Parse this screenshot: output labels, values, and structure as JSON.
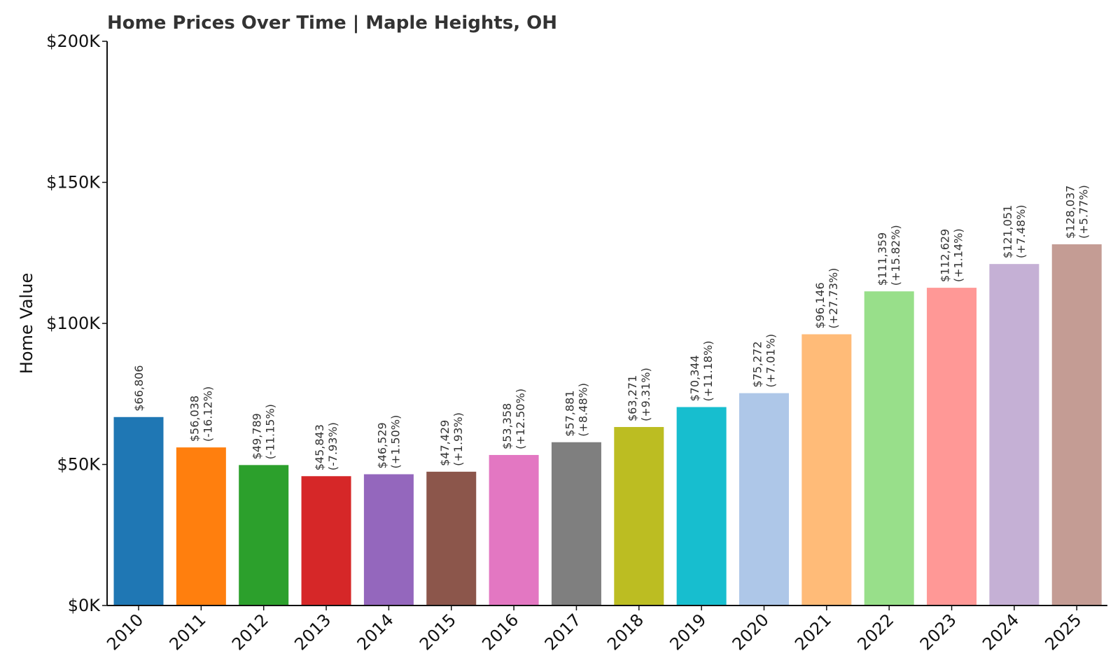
{
  "chart_data": {
    "type": "bar",
    "title": "Home Prices Over Time | Maple Heights, OH",
    "xlabel": "",
    "ylabel": "Home Value",
    "ylim": [
      0,
      200000
    ],
    "y_ticks": [
      {
        "value": 0,
        "label": "$0K"
      },
      {
        "value": 50000,
        "label": "$50K"
      },
      {
        "value": 100000,
        "label": "$100K"
      },
      {
        "value": 150000,
        "label": "$150K"
      },
      {
        "value": 200000,
        "label": "$200K"
      }
    ],
    "grid": false,
    "categories": [
      "2010",
      "2011",
      "2012",
      "2013",
      "2014",
      "2015",
      "2016",
      "2017",
      "2018",
      "2019",
      "2020",
      "2021",
      "2022",
      "2023",
      "2024",
      "2025"
    ],
    "values": [
      66806,
      56038,
      49789,
      45843,
      46529,
      47429,
      53358,
      57881,
      63271,
      70344,
      75272,
      96146,
      111359,
      112629,
      121051,
      128037
    ],
    "value_labels": [
      "$66,806",
      "$56,038",
      "$49,789",
      "$45,843",
      "$46,529",
      "$47,429",
      "$53,358",
      "$57,881",
      "$63,271",
      "$70,344",
      "$75,272",
      "$96,146",
      "$111,359",
      "$112,629",
      "$121,051",
      "$128,037"
    ],
    "change_labels": [
      "",
      "(-16.12%)",
      "(-11.15%)",
      "(-7.93%)",
      "(+1.50%)",
      "(+1.93%)",
      "(+12.50%)",
      "(+8.48%)",
      "(+9.31%)",
      "(+11.18%)",
      "(+7.01%)",
      "(+27.73%)",
      "(+15.82%)",
      "(+1.14%)",
      "(+7.48%)",
      "(+5.77%)"
    ],
    "colors": [
      "#1f77b4",
      "#ff7f0e",
      "#2ca02c",
      "#d62728",
      "#9467bd",
      "#8c564b",
      "#e377c2",
      "#7f7f7f",
      "#bcbd22",
      "#17becf",
      "#aec7e8",
      "#ffbb78",
      "#98df8a",
      "#ff9896",
      "#c5b0d5",
      "#c49c94"
    ]
  }
}
